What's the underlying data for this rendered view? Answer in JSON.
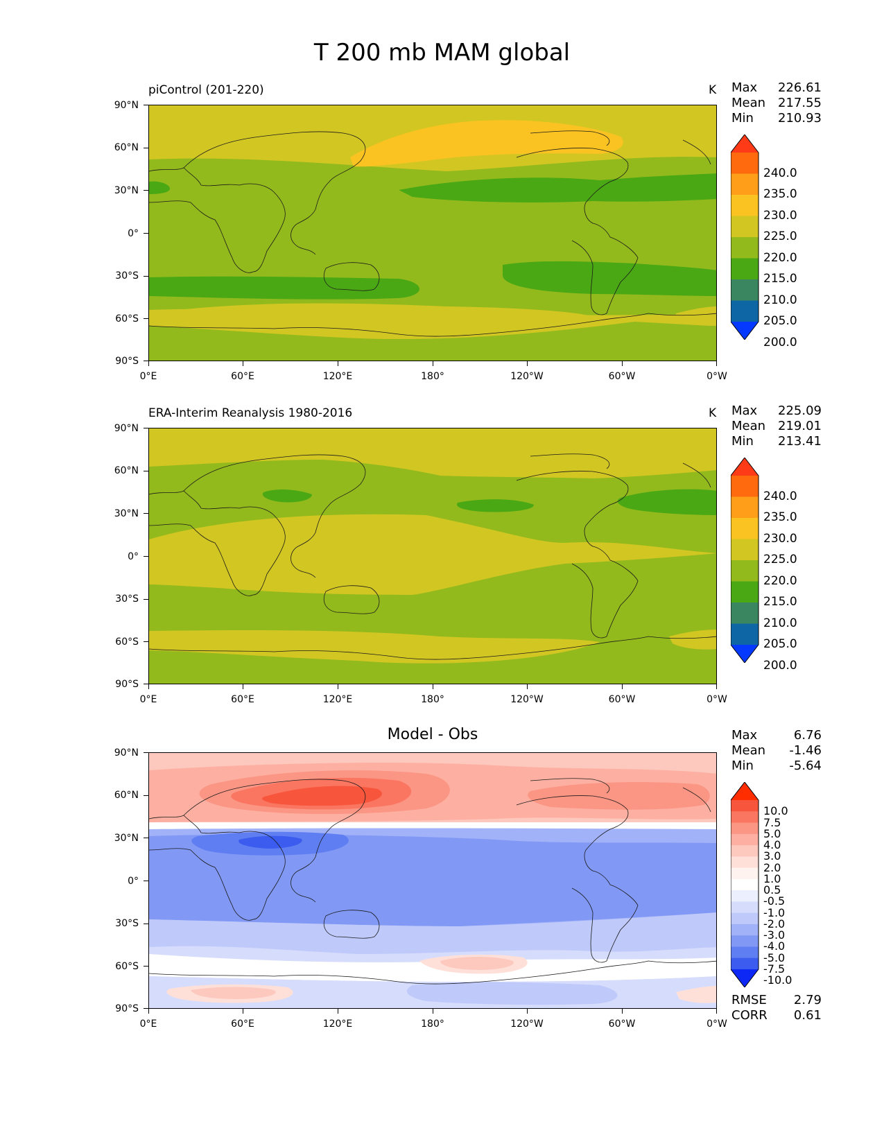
{
  "figure": {
    "title": "T 200 mb MAM global"
  },
  "axes": {
    "yticks": [
      "90°N",
      "60°N",
      "30°N",
      "0°",
      "30°S",
      "60°S",
      "90°S"
    ],
    "xticks": [
      "0°E",
      "60°E",
      "120°E",
      "180°",
      "120°W",
      "60°W",
      "0°W"
    ]
  },
  "panels": [
    {
      "title": "piControl (201-220)",
      "units": "K",
      "stats": {
        "max_label": "Max",
        "max": "226.61",
        "mean_label": "Mean",
        "mean": "217.55",
        "min_label": "Min",
        "min": "210.93"
      }
    },
    {
      "title": "ERA-Interim Reanalysis 1980-2016",
      "units": "K",
      "stats": {
        "max_label": "Max",
        "max": "225.09",
        "mean_label": "Mean",
        "mean": "219.01",
        "min_label": "Min",
        "min": "213.41"
      }
    },
    {
      "title": "Model - Obs",
      "stats": {
        "max_label": "Max",
        "max": "6.76",
        "mean_label": "Mean",
        "mean": "-1.46",
        "min_label": "Min",
        "min": "-5.64"
      },
      "metrics": {
        "rmse_label": "RMSE",
        "rmse": "2.79",
        "corr_label": "CORR",
        "corr": "0.61"
      }
    }
  ],
  "colorbars": {
    "temperature": {
      "labels": [
        "240.0",
        "235.0",
        "230.0",
        "225.0",
        "220.0",
        "215.0",
        "210.0",
        "205.0",
        "200.0"
      ],
      "colors": [
        "#ff3a16",
        "#ff6a0e",
        "#ff9e18",
        "#fbc322",
        "#d2c623",
        "#93ba1c",
        "#4aa815",
        "#3a8660",
        "#0f66a5",
        "#0539ff"
      ]
    },
    "difference": {
      "labels": [
        "10.0",
        "7.5",
        "5.0",
        "4.0",
        "3.0",
        "2.0",
        "1.0",
        "0.5",
        "-0.5",
        "-1.0",
        "-2.0",
        "-3.0",
        "-4.0",
        "-5.0",
        "-7.5",
        "-10.0"
      ],
      "colors": [
        "#ff2d00",
        "#f7563c",
        "#fa7661",
        "#fb9584",
        "#fdb0a2",
        "#fdc8bd",
        "#fee0d9",
        "#fff3f0",
        "#ffffff",
        "#eceffd",
        "#d6dcfc",
        "#bfcafa",
        "#a2b2f8",
        "#8198f5",
        "#5f7ef2",
        "#3b5cef",
        "#0d28f5"
      ]
    }
  },
  "chart_data": [
    {
      "type": "heatmap",
      "title": "piControl (201-220)",
      "units": "K",
      "x_range": [
        0,
        360
      ],
      "y_range": [
        -90,
        90
      ],
      "levels": [
        200,
        205,
        210,
        215,
        220,
        225,
        230,
        235,
        240
      ],
      "stats": {
        "max": 226.61,
        "mean": 217.55,
        "min": 210.93
      }
    },
    {
      "type": "heatmap",
      "title": "ERA-Interim Reanalysis 1980-2016",
      "units": "K",
      "x_range": [
        0,
        360
      ],
      "y_range": [
        -90,
        90
      ],
      "levels": [
        200,
        205,
        210,
        215,
        220,
        225,
        230,
        235,
        240
      ],
      "stats": {
        "max": 225.09,
        "mean": 219.01,
        "min": 213.41
      }
    },
    {
      "type": "heatmap",
      "title": "Model - Obs",
      "x_range": [
        0,
        360
      ],
      "y_range": [
        -90,
        90
      ],
      "levels": [
        -10,
        -7.5,
        -5,
        -4,
        -3,
        -2,
        -1,
        -0.5,
        0.5,
        1,
        2,
        3,
        4,
        5,
        7.5,
        10
      ],
      "stats": {
        "max": 6.76,
        "mean": -1.46,
        "min": -5.64
      },
      "rmse": 2.79,
      "corr": 0.61
    }
  ]
}
